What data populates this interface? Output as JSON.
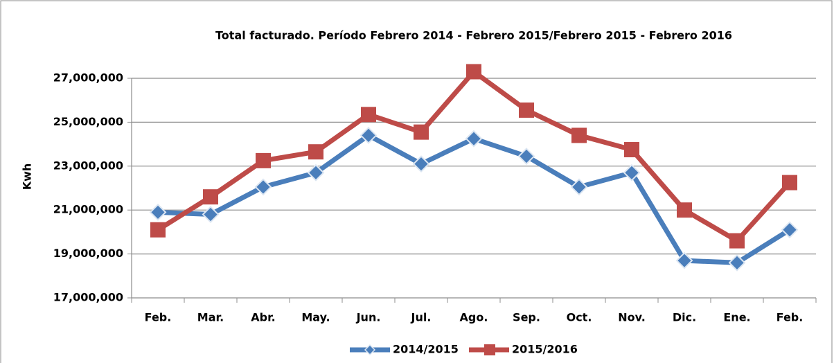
{
  "chart_data": {
    "type": "line",
    "title": "Total facturado. Período Febrero 2014 - Febrero 2015/Febrero 2015 - Febrero 2016",
    "ylabel": "Kwh",
    "categories": [
      "Feb.",
      "Mar.",
      "Abr.",
      "May.",
      "Jun.",
      "Jul.",
      "Ago.",
      "Sep.",
      "Oct.",
      "Nov.",
      "Dic.",
      "Ene.",
      "Feb."
    ],
    "series": [
      {
        "name": "2014/2015",
        "color": "#4a7ebb",
        "marker": "diamond",
        "values": [
          20900000,
          20800000,
          22050000,
          22700000,
          24400000,
          23100000,
          24250000,
          23450000,
          22050000,
          22700000,
          18700000,
          18600000,
          20100000
        ]
      },
      {
        "name": "2015/2016",
        "color": "#be4b48",
        "marker": "square",
        "values": [
          20100000,
          21600000,
          23250000,
          23650000,
          25350000,
          24550000,
          27300000,
          25550000,
          24400000,
          23750000,
          21000000,
          19600000,
          22250000
        ]
      }
    ],
    "ylim": [
      17000000,
      27000000
    ],
    "yticks": [
      {
        "value": 17000000,
        "label": "17,000,000"
      },
      {
        "value": 19000000,
        "label": "19,000,000"
      },
      {
        "value": 21000000,
        "label": "21,000,000"
      },
      {
        "value": 23000000,
        "label": "23,000,000"
      },
      {
        "value": 25000000,
        "label": "25,000,000"
      },
      {
        "value": 27000000,
        "label": "27,000,000"
      }
    ],
    "grid": true,
    "legend": "bottom"
  }
}
